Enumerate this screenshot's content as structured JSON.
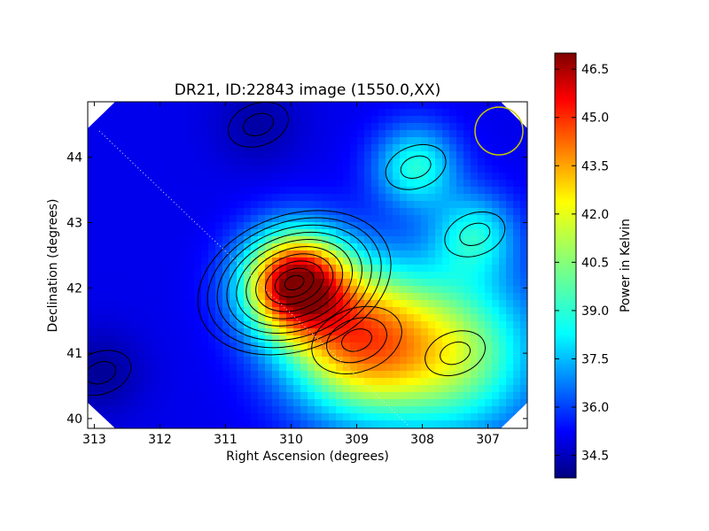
{
  "chart_data": {
    "type": "heatmap",
    "title": "DR21, ID:22843 image (1550.0,XX)",
    "xlabel": "Right Ascension (degrees)",
    "ylabel": "Declination (degrees)",
    "x_ticks": [
      "313",
      "312",
      "311",
      "310",
      "309",
      "308",
      "307"
    ],
    "y_ticks": [
      "44",
      "43",
      "42",
      "41",
      "40"
    ],
    "xlim": [
      313.1,
      306.4
    ],
    "ylim": [
      39.85,
      44.85
    ],
    "colorbar": {
      "label": "Power in Kelvin",
      "ticks": [
        "34.5",
        "36.0",
        "37.5",
        "39.0",
        "40.5",
        "42.0",
        "43.5",
        "45.0",
        "46.5"
      ],
      "range": [
        33.8,
        47.0
      ],
      "colormap": "jet"
    },
    "features": [
      {
        "kind": "peak",
        "ra": 309.95,
        "dec": 42.08,
        "value": 46.8
      },
      {
        "kind": "ridge",
        "ra": 309.0,
        "dec": 41.2,
        "value": 43.5
      },
      {
        "kind": "local-max",
        "ra": 308.1,
        "dec": 43.85,
        "value": 39.5
      },
      {
        "kind": "local-max",
        "ra": 307.2,
        "dec": 42.82,
        "value": 38.8
      },
      {
        "kind": "plateau",
        "ra": 307.5,
        "dec": 41.0,
        "value": 41.0
      },
      {
        "kind": "minimum",
        "ra": 312.9,
        "dec": 40.7,
        "value": 34.0
      },
      {
        "kind": "minimum",
        "ra": 310.5,
        "dec": 44.5,
        "value": 34.2
      }
    ],
    "beam_marker": {
      "ra": 306.75,
      "dec": 44.4,
      "color": "#c8c800"
    }
  }
}
